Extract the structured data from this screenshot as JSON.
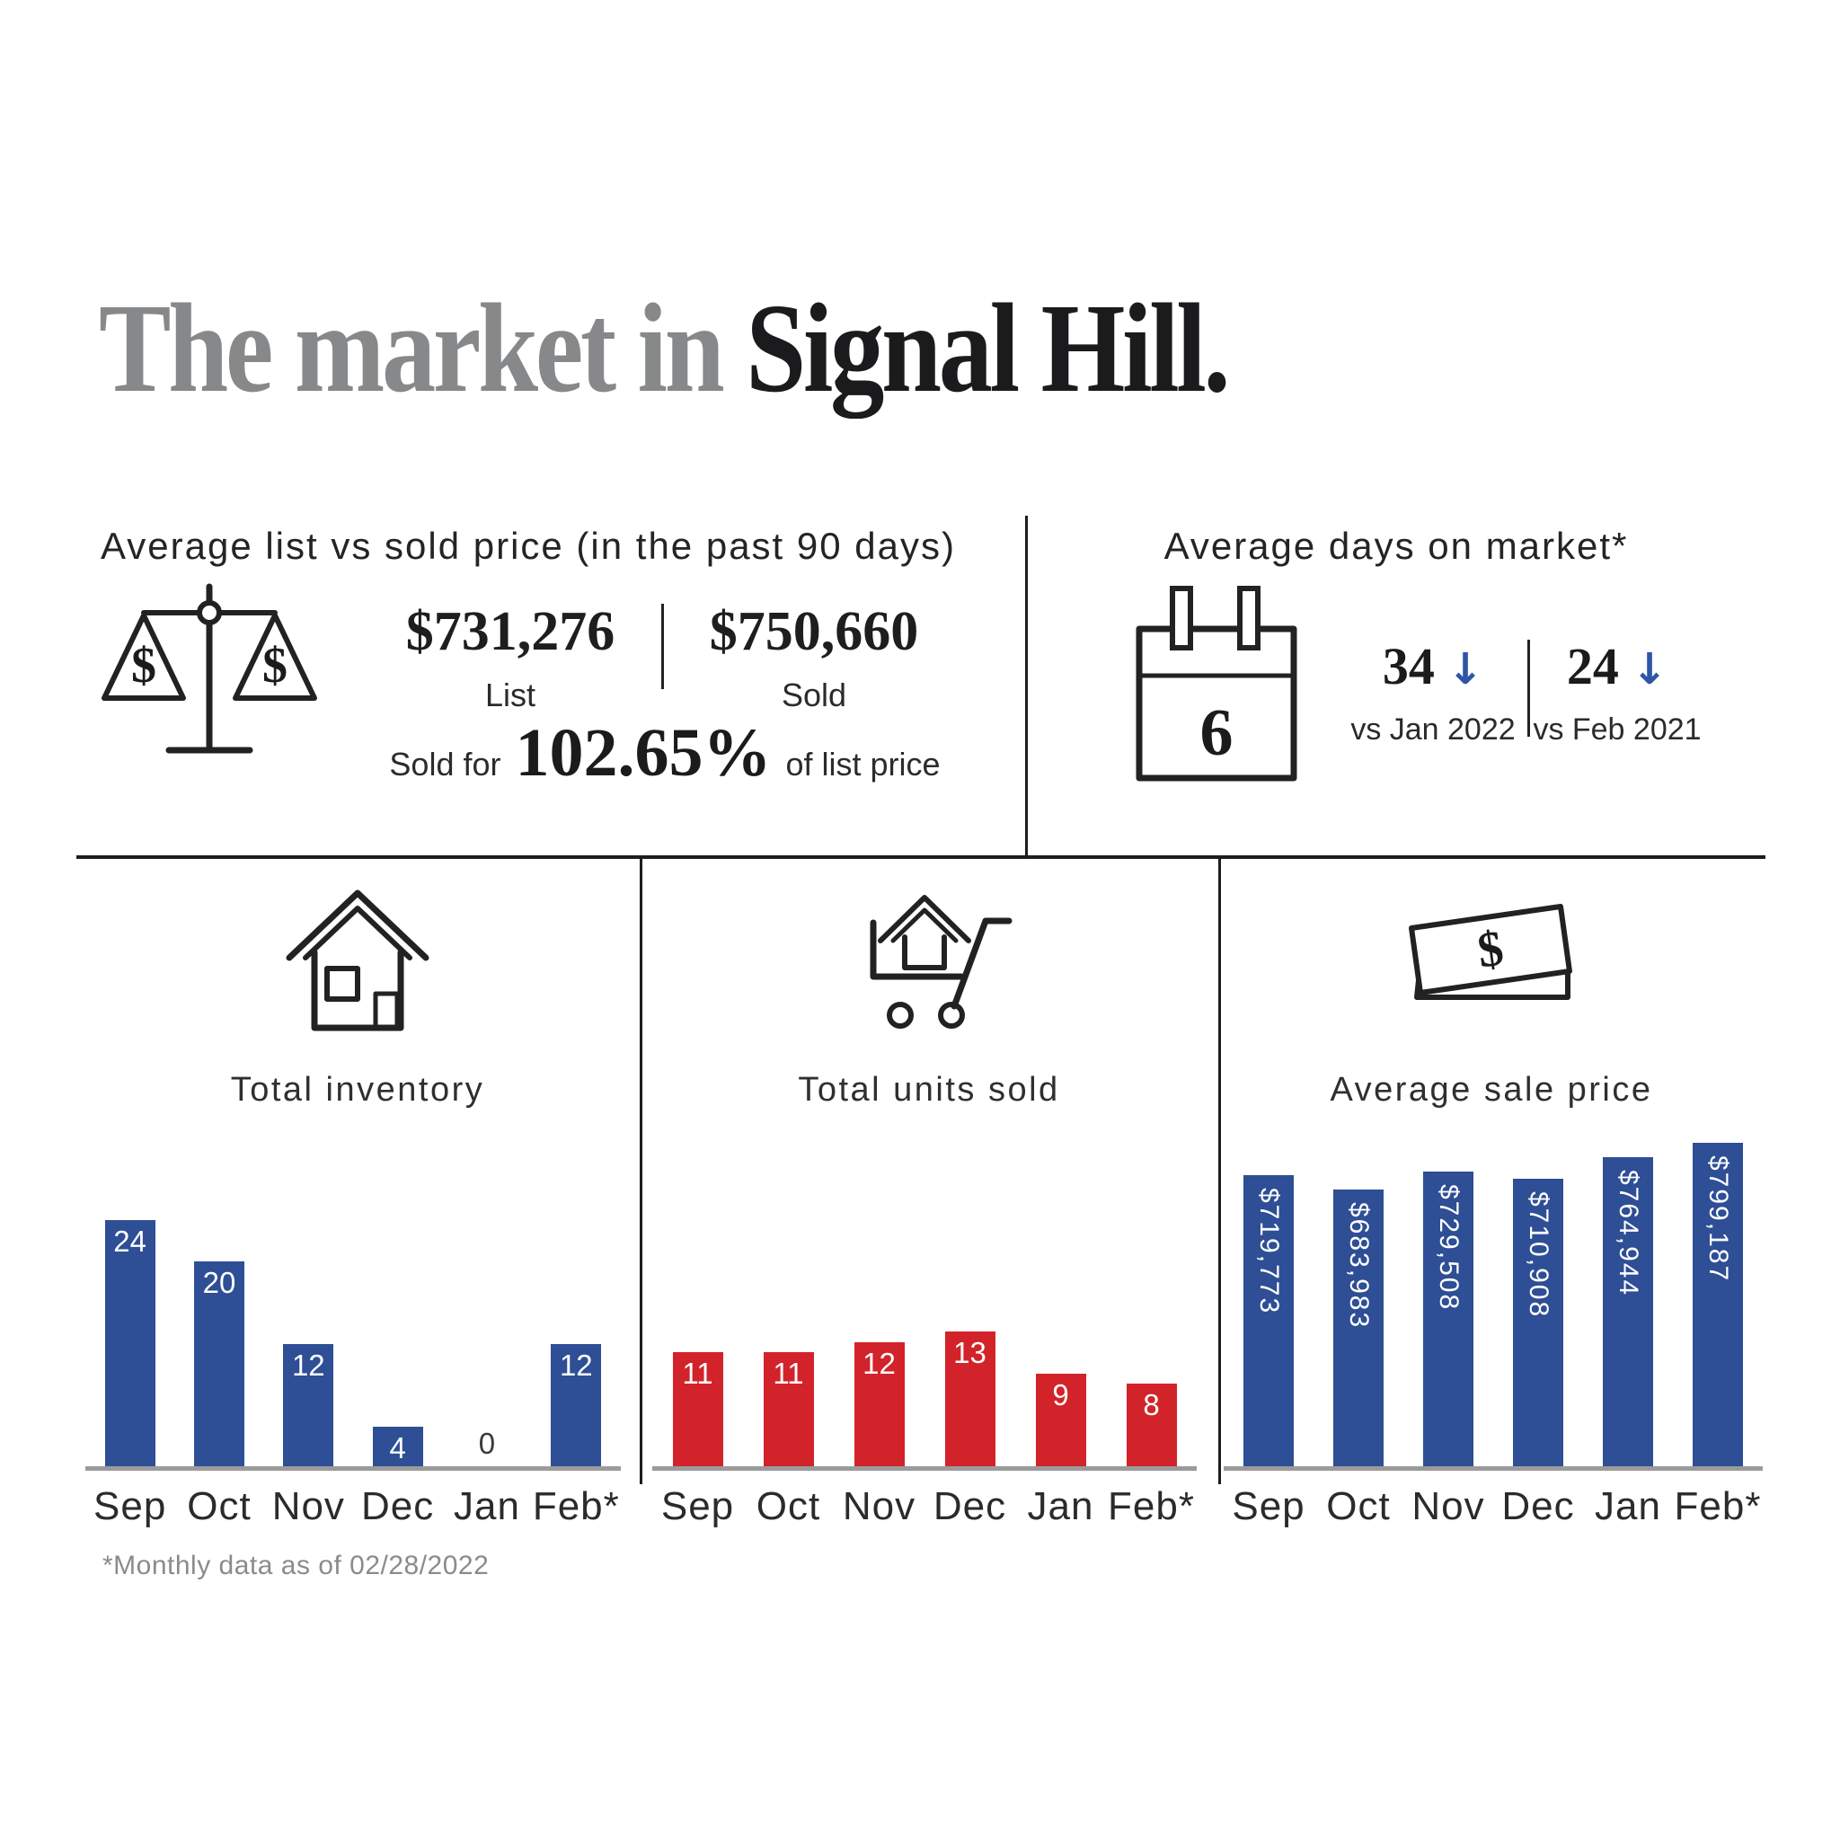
{
  "title": {
    "prefix": "The market in ",
    "emphasis": "Signal Hill."
  },
  "list_vs_sold": {
    "heading": "Average list vs sold price (in the past 90 days)",
    "list_value": "$731,276",
    "list_label": "List",
    "sold_value": "$750,660",
    "sold_label": "Sold",
    "sold_for_prefix": "Sold for",
    "sold_for_pct": "102.65%",
    "sold_for_suffix": "of list price"
  },
  "days_on_market": {
    "heading": "Average days on market*",
    "current_days": "6",
    "comparisons": [
      {
        "value": "34",
        "arrow": "↓",
        "label": "vs Jan 2022"
      },
      {
        "value": "24",
        "arrow": "↓",
        "label": "vs Feb 2021"
      }
    ]
  },
  "footnote": "*Monthly data as of 02/28/2022",
  "colors": {
    "bar_blue": "#2E4E95",
    "bar_red": "#D2232A",
    "arrow_blue": "#2E56A8",
    "axis_gray": "#9B9B9B",
    "title_gray": "#87888A",
    "ink": "#1E1E20",
    "bar_label_white": "#FFFFFF",
    "zero_label_dark": "#3A3A3C"
  },
  "chart_data": [
    {
      "type": "bar",
      "title": "Total inventory",
      "icon": "house-icon",
      "categories": [
        "Sep",
        "Oct",
        "Nov",
        "Dec",
        "Jan",
        "Feb*"
      ],
      "values": [
        24,
        20,
        12,
        4,
        0,
        12
      ],
      "value_labels": [
        "24",
        "20",
        "12",
        "4",
        "0",
        "12"
      ],
      "bar_color": "#2E4E95",
      "label_color": "#FFFFFF",
      "zero_label_color": "#3A3A3C",
      "label_orientation": "horizontal",
      "ylim": [
        0,
        24
      ],
      "grid": false,
      "legend": "none"
    },
    {
      "type": "bar",
      "title": "Total units sold",
      "icon": "cart-icon",
      "categories": [
        "Sep",
        "Oct",
        "Nov",
        "Dec",
        "Jan",
        "Feb*"
      ],
      "values": [
        11,
        11,
        12,
        13,
        9,
        8
      ],
      "value_labels": [
        "11",
        "11",
        "12",
        "13",
        "9",
        "8"
      ],
      "bar_color": "#D2232A",
      "label_color": "#FFFFFF",
      "zero_label_color": "#3A3A3C",
      "label_orientation": "horizontal",
      "ylim": [
        0,
        13
      ],
      "grid": false,
      "legend": "none"
    },
    {
      "type": "bar",
      "title": "Average sale price",
      "icon": "money-icon",
      "categories": [
        "Sep",
        "Oct",
        "Nov",
        "Dec",
        "Jan",
        "Feb*"
      ],
      "values": [
        719773,
        683983,
        729508,
        710908,
        764944,
        799187
      ],
      "value_labels": [
        "$719,773",
        "$683,983",
        "$729,508",
        "$710,908",
        "$764,944",
        "$799,187"
      ],
      "bar_color": "#2E4E95",
      "label_color": "#FFFFFF",
      "zero_label_color": "#3A3A3C",
      "label_orientation": "vertical",
      "ylim": [
        0,
        799187
      ],
      "grid": false,
      "legend": "none"
    }
  ]
}
